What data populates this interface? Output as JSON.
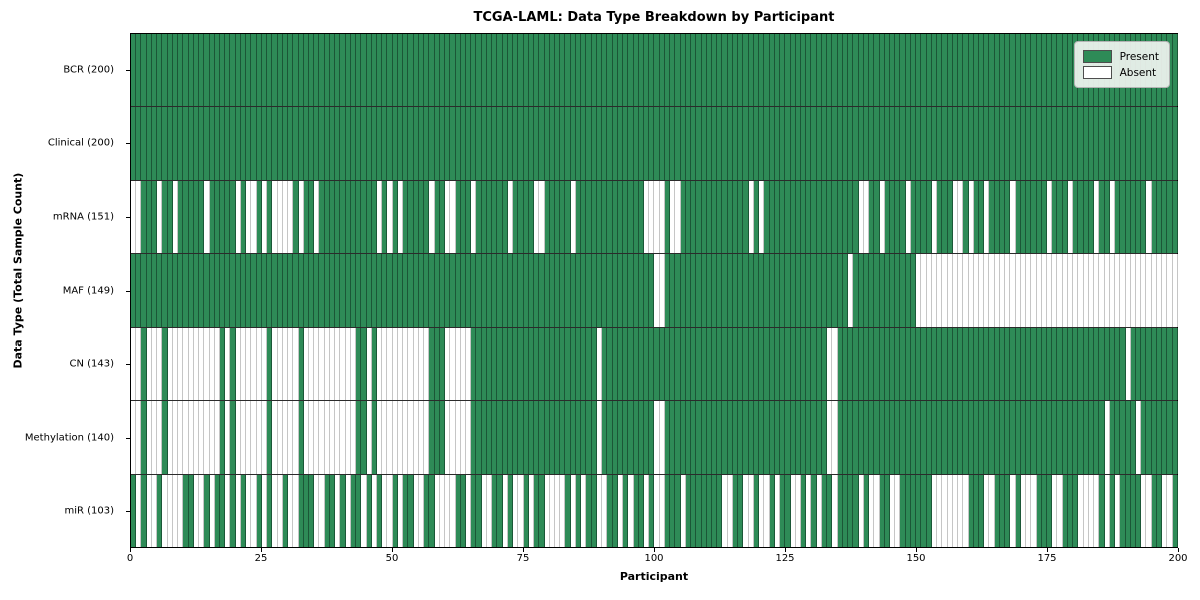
{
  "title": "TCGA-LAML: Data Type Breakdown by Participant",
  "axes": {
    "x_label": "Participant",
    "y_label": "Data Type (Total Sample Count)"
  },
  "legend": {
    "present_label": "Present",
    "absent_label": "Absent"
  },
  "colors": {
    "present": "#2e8b57",
    "absent": "#ffffff",
    "row_separator": "#2b2b2b",
    "spine": "#000000",
    "legend_bg": "#f0f4f0",
    "legend_border": "#b3b3b3"
  },
  "chart_data": {
    "type": "heatmap",
    "x_axis": {
      "label": "Participant",
      "min": 0,
      "max": 200,
      "ticks": [
        0,
        25,
        50,
        75,
        100,
        125,
        150,
        175,
        200
      ]
    },
    "y_axis_label": "Data Type (Total Sample Count)",
    "legend_entries": [
      "Present",
      "Absent"
    ],
    "legend_position": "upper right",
    "grid": false,
    "n_participants": 200,
    "rows": [
      {
        "label": "BCR (200)",
        "name": "BCR",
        "total": 200,
        "presence": "11111111111111111111111111111111111111111111111111111111111111111111111111111111111111111111111111111111111111111111111111111111111111111111111111111111111111111111111111111111111111111111111111111111"
      },
      {
        "label": "Clinical (200)",
        "name": "Clinical",
        "total": 200,
        "presence": "11111111111111111111111111111111111111111111111111111111111111111111111111111111111111111111111111111111111111111111111111111111111111111111111111111111111111111111111111111111111111111111111111111111"
      },
      {
        "label": "mRNA (151)",
        "name": "mRNA",
        "total": 151,
        "presence": "00111011011111011111010010100001011011111111111010101111101100111011111101111001111101111111111111000010011111111111110101111111111111111110011011110111101110010110111101111110111011110110111111011111"
      },
      {
        "label": "MAF (149)",
        "name": "MAF",
        "total": 149,
        "presence": "11111111111111111111111111111111111111111111111111111111111111111111111111111111111111111111111111110011111111111111111111111111111111111011111111111100000000000000000000000000000000000000000000000000"
      },
      {
        "label": "CN (143)",
        "name": "CN",
        "total": 143,
        "presence": "00100010000000000101000000100000100000000001101000000000011100000111111111111111111111111011111111111111111111111111111111111111111110011111111111111111111111111111111111111111111111111111110111111111"
      },
      {
        "label": "Methylation (140)",
        "name": "Methylation",
        "total": 140,
        "presence": "00100010000000000101000000100000100000000001101000000000011100000111111111111111111111111011111111110011111111111111111111111111111110011111111111111111111111111111111111111111111111111101111101111111"
      },
      {
        "label": "miR (103)",
        "name": "miR",
        "total": 103,
        "presence": "10100100001100101101010010100100111001101011010100101100110000110110011010010110000101011001101011010011101111111001100100101100101011011110100110011111100000001110011101000111001110000101011110011001"
      }
    ]
  }
}
